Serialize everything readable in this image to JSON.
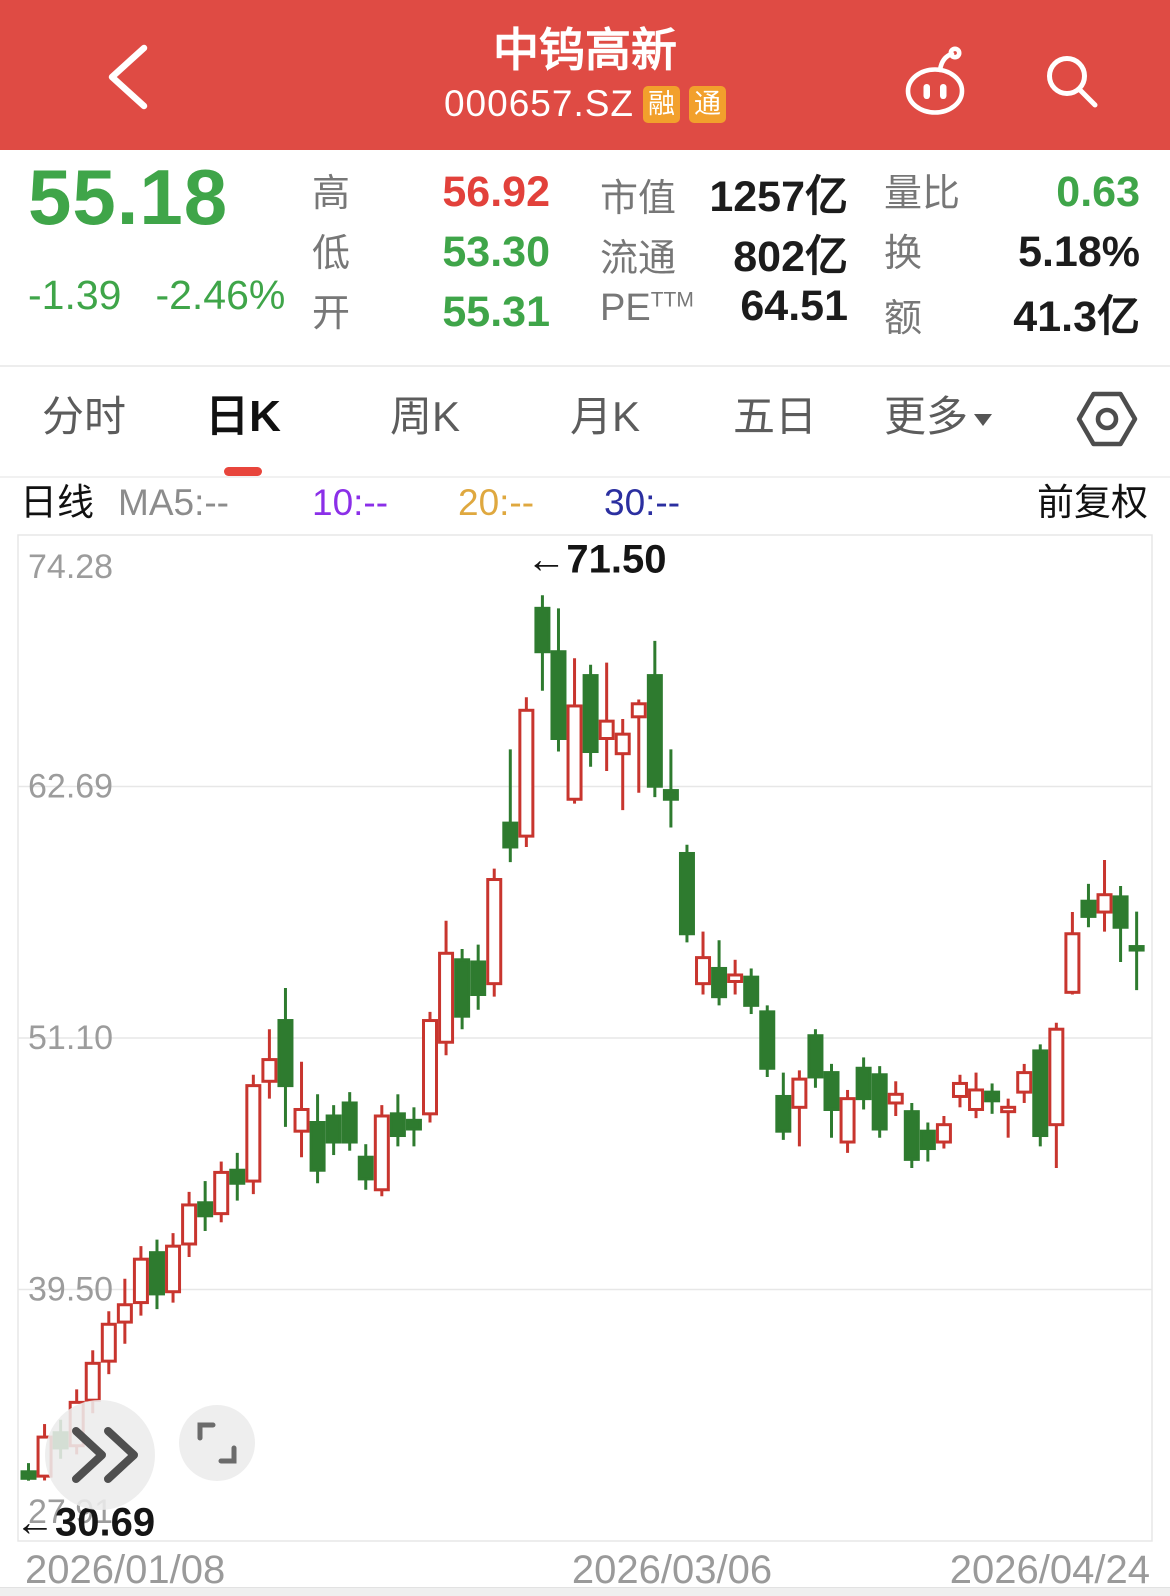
{
  "colors": {
    "header_bg": "#DF4B44",
    "badge_bg": "#F2A02C",
    "price_green": "#3FA549",
    "value_red": "#E2413B",
    "tab_underline_red": "#E8453C"
  },
  "header": {
    "title": "中钨高新",
    "code": "000657.SZ",
    "badges": [
      "融",
      "通"
    ]
  },
  "quote": {
    "price": "55.18",
    "change": "-1.39",
    "change_pct": "-2.46%",
    "cols": [
      {
        "rows": [
          {
            "label": "高",
            "value": "56.92"
          },
          {
            "label": "低",
            "value": "53.30"
          },
          {
            "label": "开",
            "value": "55.31"
          }
        ]
      },
      {
        "rows": [
          {
            "label": "市值",
            "value": "1257亿"
          },
          {
            "label": "流通",
            "value": "802亿"
          },
          {
            "label": "PE",
            "sup": "TTM",
            "value": "64.51"
          }
        ]
      },
      {
        "rows": [
          {
            "label": "量比",
            "value": "0.63"
          },
          {
            "label": "换",
            "value": "5.18%"
          },
          {
            "label": "额",
            "value": "41.3亿"
          }
        ]
      }
    ]
  },
  "tabs": {
    "items": [
      "分时",
      "日K",
      "周K",
      "月K",
      "五日",
      "更多"
    ],
    "active": "日K"
  },
  "ma_bar": {
    "period": "日线",
    "items": [
      {
        "label": "MA5:--",
        "color": "#8C8C8C"
      },
      {
        "label": "10:--",
        "color": "#8B2FE8"
      },
      {
        "label": "20:--",
        "color": "#DFA83F"
      },
      {
        "label": "30:--",
        "color": "#2B2FA0"
      }
    ],
    "adjust": "前复权"
  },
  "chart_data": {
    "type": "candlestick",
    "title": "中钨高新 000657.SZ 日K (前复权)",
    "y_ticks": [
      "74.28",
      "62.69",
      "51.10",
      "39.50",
      "27.91"
    ],
    "ylim": [
      27.91,
      74.28
    ],
    "x_labels": [
      "2026/01/08",
      "2026/03/06",
      "2026/04/24"
    ],
    "high_label": "←71.50",
    "high_value": 71.5,
    "low_label": "←30.69",
    "low_value": 30.69,
    "grid": true,
    "grid_color": "#E7E7E7",
    "tick_color": "#9C9C9C",
    "up_color": "#C8352E",
    "down_color": "#2E7B2F",
    "candles_format": [
      "open",
      "close",
      "low",
      "high"
    ],
    "candles": [
      [
        31.1,
        30.8,
        30.69,
        31.5
      ],
      [
        30.9,
        32.7,
        30.7,
        33.3
      ],
      [
        32.9,
        32.2,
        31.7,
        33.5
      ],
      [
        32.3,
        34.3,
        31.9,
        34.9
      ],
      [
        34.4,
        36.1,
        33.8,
        36.7
      ],
      [
        36.2,
        37.9,
        35.6,
        38.5
      ],
      [
        38.0,
        38.8,
        37.0,
        40.0
      ],
      [
        38.9,
        40.9,
        38.3,
        41.5
      ],
      [
        41.2,
        39.3,
        38.6,
        41.8
      ],
      [
        39.4,
        41.5,
        38.9,
        42.1
      ],
      [
        41.6,
        43.4,
        41.0,
        44.0
      ],
      [
        43.5,
        42.9,
        42.2,
        44.5
      ],
      [
        43.0,
        44.9,
        42.6,
        45.4
      ],
      [
        45.0,
        44.4,
        43.6,
        45.8
      ],
      [
        44.5,
        48.9,
        43.9,
        49.4
      ],
      [
        49.1,
        50.1,
        48.3,
        51.5
      ],
      [
        51.9,
        48.9,
        47.0,
        53.4
      ],
      [
        46.8,
        47.8,
        45.6,
        50.0
      ],
      [
        47.2,
        45.0,
        44.4,
        48.5
      ],
      [
        47.5,
        46.3,
        45.7,
        48.0
      ],
      [
        48.1,
        46.3,
        45.9,
        48.6
      ],
      [
        45.6,
        44.6,
        44.1,
        46.2
      ],
      [
        44.1,
        47.5,
        43.8,
        48.0
      ],
      [
        47.6,
        46.6,
        46.1,
        48.5
      ],
      [
        47.3,
        46.9,
        46.1,
        47.9
      ],
      [
        47.6,
        51.9,
        47.2,
        52.3
      ],
      [
        50.9,
        55.0,
        50.3,
        56.5
      ],
      [
        54.7,
        52.1,
        51.5,
        55.2
      ],
      [
        54.6,
        53.1,
        52.4,
        55.4
      ],
      [
        53.6,
        58.4,
        53.0,
        58.9
      ],
      [
        61.0,
        59.9,
        59.2,
        64.4
      ],
      [
        60.4,
        66.2,
        59.9,
        66.8
      ],
      [
        70.9,
        68.9,
        67.1,
        71.5
      ],
      [
        68.9,
        64.9,
        64.3,
        70.9
      ],
      [
        62.1,
        66.4,
        61.9,
        68.6
      ],
      [
        67.8,
        64.3,
        63.6,
        68.3
      ],
      [
        64.9,
        65.7,
        63.4,
        68.4
      ],
      [
        64.2,
        65.1,
        61.6,
        65.8
      ],
      [
        65.9,
        66.5,
        62.4,
        66.7
      ],
      [
        67.8,
        62.7,
        62.2,
        69.4
      ],
      [
        62.5,
        62.1,
        60.8,
        64.4
      ],
      [
        59.6,
        55.9,
        55.5,
        60.0
      ],
      [
        53.6,
        54.8,
        53.1,
        56.0
      ],
      [
        54.3,
        53.0,
        52.6,
        55.6
      ],
      [
        53.7,
        54.0,
        53.1,
        54.7
      ],
      [
        53.9,
        52.6,
        52.2,
        54.3
      ],
      [
        52.3,
        49.7,
        49.3,
        52.6
      ],
      [
        48.4,
        46.8,
        46.4,
        49.5
      ],
      [
        47.9,
        49.2,
        46.1,
        49.6
      ],
      [
        51.2,
        49.3,
        48.8,
        51.5
      ],
      [
        49.5,
        47.8,
        46.5,
        49.9
      ],
      [
        46.3,
        48.3,
        45.8,
        48.7
      ],
      [
        49.7,
        48.3,
        47.8,
        50.2
      ],
      [
        49.4,
        46.9,
        46.5,
        49.8
      ],
      [
        48.1,
        48.5,
        47.5,
        49.1
      ],
      [
        47.7,
        45.5,
        45.1,
        48.1
      ],
      [
        46.8,
        46.0,
        45.4,
        47.2
      ],
      [
        46.3,
        47.1,
        46.0,
        47.5
      ],
      [
        48.4,
        49.0,
        47.9,
        49.4
      ],
      [
        47.8,
        48.7,
        47.4,
        49.5
      ],
      [
        48.6,
        48.2,
        47.6,
        49.0
      ],
      [
        47.7,
        47.9,
        46.5,
        48.3
      ],
      [
        48.6,
        49.5,
        48.1,
        49.9
      ],
      [
        50.5,
        46.6,
        46.1,
        50.8
      ],
      [
        47.1,
        51.5,
        45.1,
        51.8
      ],
      [
        53.2,
        55.9,
        53.1,
        56.9
      ],
      [
        57.4,
        56.7,
        56.2,
        58.2
      ],
      [
        56.9,
        57.7,
        56.0,
        59.3
      ],
      [
        57.6,
        56.2,
        54.6,
        58.1
      ],
      [
        55.31,
        55.18,
        53.3,
        56.92
      ]
    ]
  }
}
